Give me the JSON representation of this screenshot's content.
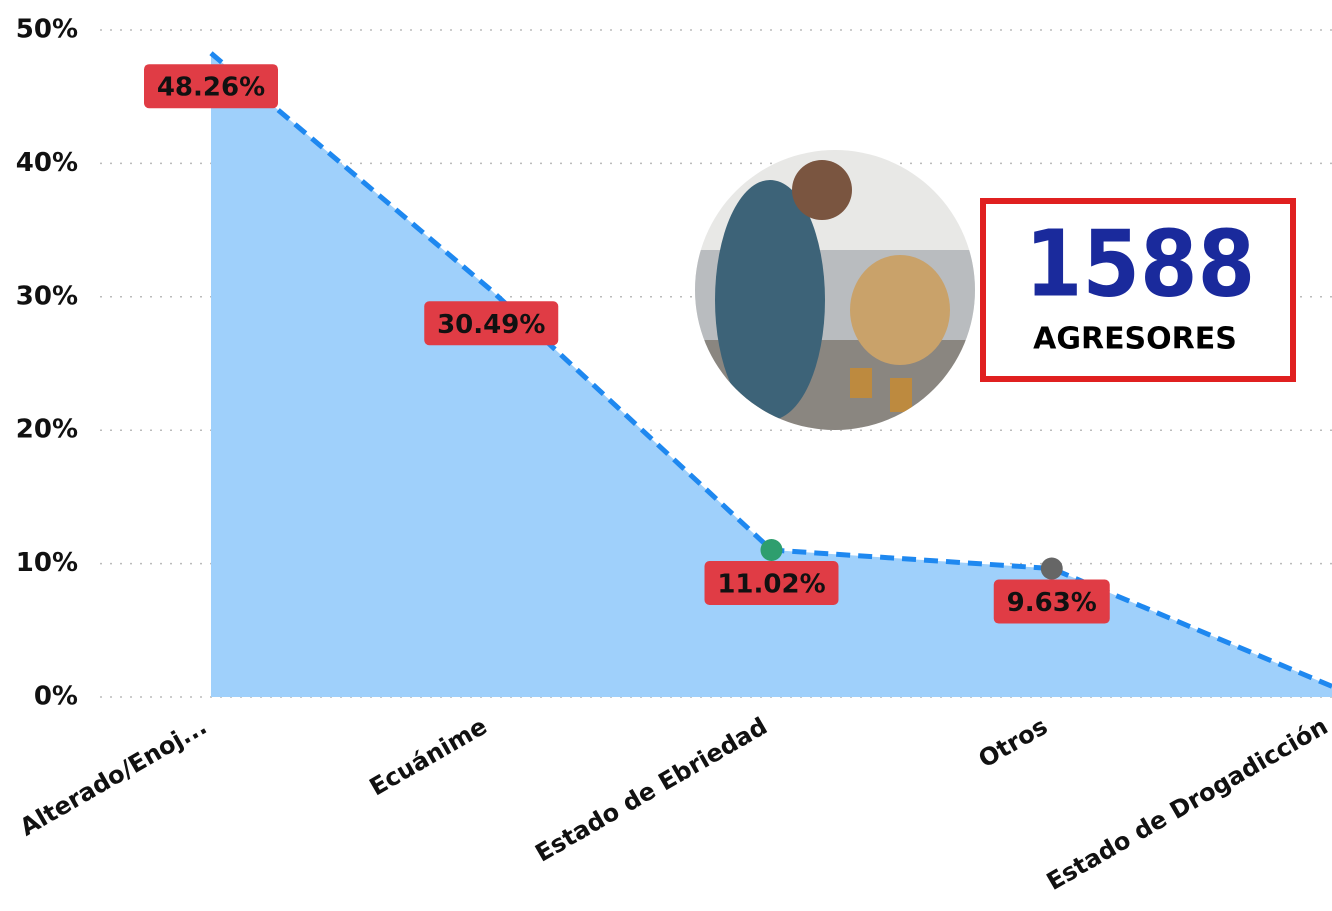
{
  "chart_data": {
    "type": "area",
    "categories": [
      "Alterado/Enoj...",
      "Ecuánime",
      "Estado de Ebriedad",
      "Otros",
      "Estado de Drogadicción"
    ],
    "values": [
      48.26,
      30.49,
      11.02,
      9.63,
      0.8
    ],
    "value_labels": [
      "48.26%",
      "30.49%",
      "11.02%",
      "9.63%",
      null
    ],
    "color": "#1e88f0",
    "area_color": "#9fd0fb",
    "label_color": "#e03c45",
    "markers": [
      {
        "index": 2,
        "color": "#2e9e6e"
      },
      {
        "index": 3,
        "color": "#666666"
      }
    ],
    "ylim": [
      0,
      50
    ],
    "yticks": [
      {
        "value": 0,
        "label": "0%"
      },
      {
        "value": 10,
        "label": "10%"
      },
      {
        "value": 20,
        "label": "20%"
      },
      {
        "value": 30,
        "label": "30%"
      },
      {
        "value": 40,
        "label": "40%"
      },
      {
        "value": 50,
        "label": "50%"
      }
    ],
    "grid": true,
    "kpi": {
      "value": 1588,
      "label": "AGRESORES"
    }
  }
}
